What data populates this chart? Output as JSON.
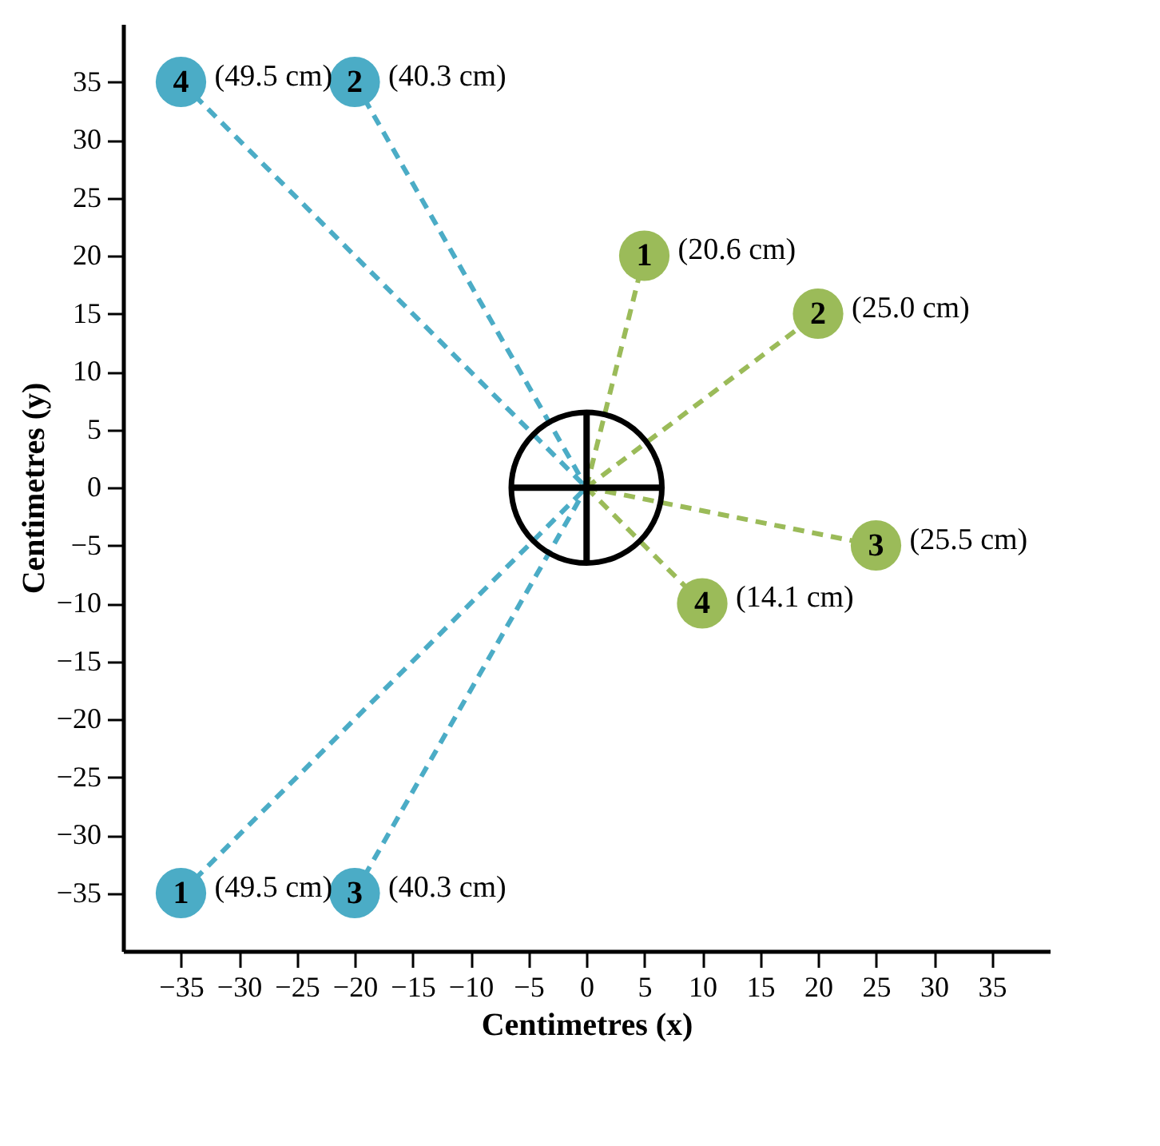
{
  "chart_data": {
    "type": "scatter",
    "xlabel": "Centimetres (x)",
    "ylabel": "Centimetres (y)",
    "xlim": [
      -40,
      40
    ],
    "ylim": [
      -40,
      40
    ],
    "xticks": [
      -35,
      -30,
      -25,
      -20,
      -15,
      -10,
      -5,
      0,
      5,
      10,
      15,
      20,
      25,
      30,
      35
    ],
    "yticks": [
      -35,
      -30,
      -25,
      -20,
      -15,
      -10,
      -5,
      0,
      5,
      10,
      15,
      20,
      25,
      30,
      35
    ],
    "grid": false,
    "legend": false,
    "series": [
      {
        "type": "line",
        "color": "#9bbb59",
        "x": [
          0,
          5
        ],
        "values": [
          0,
          20
        ],
        "line_style": "dashed"
      },
      {
        "type": "line",
        "color": "#9bbb59",
        "x": [
          0,
          20
        ],
        "values": [
          0,
          15
        ],
        "line_style": "dashed"
      },
      {
        "type": "line",
        "color": "#9bbb59",
        "x": [
          0,
          25
        ],
        "values": [
          0,
          -5
        ],
        "line_style": "dashed"
      },
      {
        "type": "line",
        "color": "#9bbb59",
        "x": [
          0,
          10
        ],
        "values": [
          0,
          -10
        ],
        "line_style": "dashed"
      },
      {
        "type": "line",
        "color": "#4bacc6",
        "x": [
          0,
          -35
        ],
        "values": [
          0,
          35
        ],
        "line_style": "dashed"
      },
      {
        "type": "line",
        "color": "#4bacc6",
        "x": [
          0,
          -20
        ],
        "values": [
          0,
          35
        ],
        "line_style": "dashed"
      },
      {
        "type": "line",
        "color": "#4bacc6",
        "x": [
          0,
          -35
        ],
        "values": [
          0,
          -35
        ],
        "line_style": "dashed"
      },
      {
        "type": "line",
        "color": "#4bacc6",
        "x": [
          0,
          -20
        ],
        "values": [
          0,
          -35
        ],
        "line_style": "dashed"
      },
      {
        "name": "1",
        "color": "#9bbb59",
        "x": [
          5
        ],
        "values": [
          20
        ],
        "marker": "circle"
      },
      {
        "name": "2",
        "color": "#9bbb59",
        "x": [
          20
        ],
        "values": [
          15
        ],
        "marker": "circle"
      },
      {
        "name": "3",
        "color": "#9bbb59",
        "x": [
          25
        ],
        "values": [
          -5
        ],
        "marker": "circle"
      },
      {
        "name": "4",
        "color": "#9bbb59",
        "x": [
          10
        ],
        "values": [
          -10
        ],
        "marker": "circle"
      },
      {
        "name": "4",
        "color": "#4bacc6",
        "x": [
          -35
        ],
        "values": [
          35
        ],
        "marker": "circle"
      },
      {
        "name": "2",
        "color": "#4bacc6",
        "x": [
          -20
        ],
        "values": [
          35
        ],
        "marker": "circle"
      },
      {
        "name": "1",
        "color": "#4bacc6",
        "x": [
          -35
        ],
        "values": [
          -35
        ],
        "marker": "circle"
      },
      {
        "name": "3",
        "color": "#4bacc6",
        "x": [
          -20
        ],
        "values": [
          -35
        ],
        "marker": "circle"
      }
    ],
    "annotations": [
      {
        "text": "(20.6 cm)",
        "x": 5,
        "y": 20
      },
      {
        "text": "(25.0 cm)",
        "x": 20,
        "y": 15
      },
      {
        "text": "(25.5 cm)",
        "x": 25,
        "y": -5
      },
      {
        "text": "(14.1 cm)",
        "x": 10,
        "y": -10
      },
      {
        "text": "(49.5 cm)",
        "x": -35,
        "y": 35
      },
      {
        "text": "(40.3 cm)",
        "x": -20,
        "y": 35
      },
      {
        "text": "(49.5 cm)",
        "x": -35,
        "y": -35
      },
      {
        "text": "(40.3 cm)",
        "x": -20,
        "y": -35
      }
    ]
  }
}
